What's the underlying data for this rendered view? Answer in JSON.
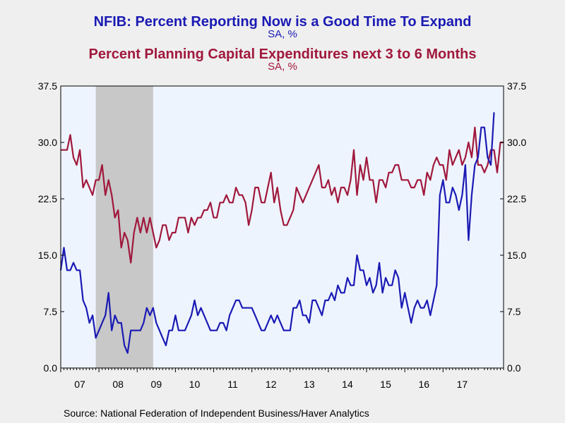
{
  "colors": {
    "series1": "#1a1ab4",
    "series2": "#a0183c",
    "plot_background": "#eef4fd",
    "recession_shade": "#c8c8c8",
    "page_background": "#efefef"
  },
  "titles": {
    "line1": "NFIB: Percent Reporting Now is a Good Time To Expand",
    "line1_sub": "SA, %",
    "line2": "Percent Planning Capital Expenditures next 3 to 6 Months",
    "line2_sub": "SA, %"
  },
  "source": "Source:  National Federation of Independent Business/Haver Analytics",
  "chart_data": {
    "type": "line",
    "x_start": "2007-01",
    "x_frequency": "monthly",
    "ylim": [
      0,
      37.5
    ],
    "y_ticks": [
      "0.0",
      "7.5",
      "15.0",
      "22.5",
      "30.0",
      "37.5"
    ],
    "y_axis_right": true,
    "x_tick_labels": [
      "07",
      "08",
      "09",
      "10",
      "11",
      "12",
      "13",
      "14",
      "15",
      "16",
      "17"
    ],
    "shaded_period": [
      "2007-12",
      "2009-06"
    ],
    "grid": false,
    "series": [
      {
        "name": "NFIB: Percent Reporting Now is a Good Time To Expand",
        "values": [
          13,
          16,
          13,
          13,
          14,
          13,
          13,
          9,
          8,
          6,
          7,
          4,
          5,
          6,
          7,
          10,
          5,
          7,
          6,
          6,
          3,
          2,
          5,
          5,
          5,
          5,
          6,
          8,
          7,
          8,
          6,
          5,
          4,
          3,
          5,
          5,
          7,
          5,
          5,
          5,
          6,
          7,
          9,
          7,
          8,
          7,
          6,
          5,
          5,
          5,
          6,
          6,
          5,
          7,
          8,
          9,
          9,
          8,
          8,
          8,
          8,
          7,
          6,
          5,
          5,
          6,
          7,
          6,
          7,
          6,
          5,
          5,
          5,
          8,
          8,
          9,
          7,
          7,
          6,
          9,
          9,
          8,
          7,
          9,
          9,
          10,
          9,
          11,
          10,
          10,
          12,
          11,
          11,
          15,
          13,
          13,
          11,
          12,
          10,
          11,
          14,
          10,
          12,
          11,
          11,
          13,
          12,
          8,
          10,
          8,
          6,
          8,
          9,
          8,
          8,
          9,
          7,
          9,
          11,
          23,
          25,
          22,
          22,
          24,
          23,
          21,
          23,
          27,
          17,
          23,
          27,
          28,
          32,
          32,
          28,
          27,
          34
        ]
      },
      {
        "name": "Percent Planning Capital Expenditures next 3 to 6 Months",
        "values": [
          29,
          29,
          29,
          31,
          28,
          27,
          29,
          24,
          25,
          24,
          23,
          25,
          25,
          27,
          23,
          25,
          23,
          20,
          21,
          16,
          18,
          17,
          14,
          18,
          20,
          18,
          20,
          18,
          20,
          18,
          16,
          17,
          19,
          19,
          17,
          18,
          18,
          20,
          20,
          20,
          18,
          20,
          19,
          20,
          20,
          21,
          21,
          22,
          20,
          20,
          22,
          22,
          23,
          22,
          22,
          24,
          23,
          23,
          22,
          19,
          21,
          24,
          24,
          22,
          22,
          24,
          26,
          22,
          24,
          21,
          19,
          19,
          20,
          21,
          24,
          23,
          22,
          23,
          24,
          25,
          26,
          27,
          24,
          24,
          25,
          23,
          24,
          22,
          24,
          24,
          23,
          25,
          29,
          23,
          27,
          25,
          28,
          25,
          25,
          22,
          25,
          25,
          24,
          26,
          26,
          27,
          27,
          25,
          25,
          25,
          24,
          24,
          25,
          25,
          23,
          26,
          25,
          27,
          28,
          27,
          27,
          25,
          29,
          27,
          28,
          29,
          27,
          28,
          30,
          28,
          32,
          27,
          27,
          26,
          27,
          29,
          29,
          26,
          30,
          30
        ]
      }
    ]
  }
}
